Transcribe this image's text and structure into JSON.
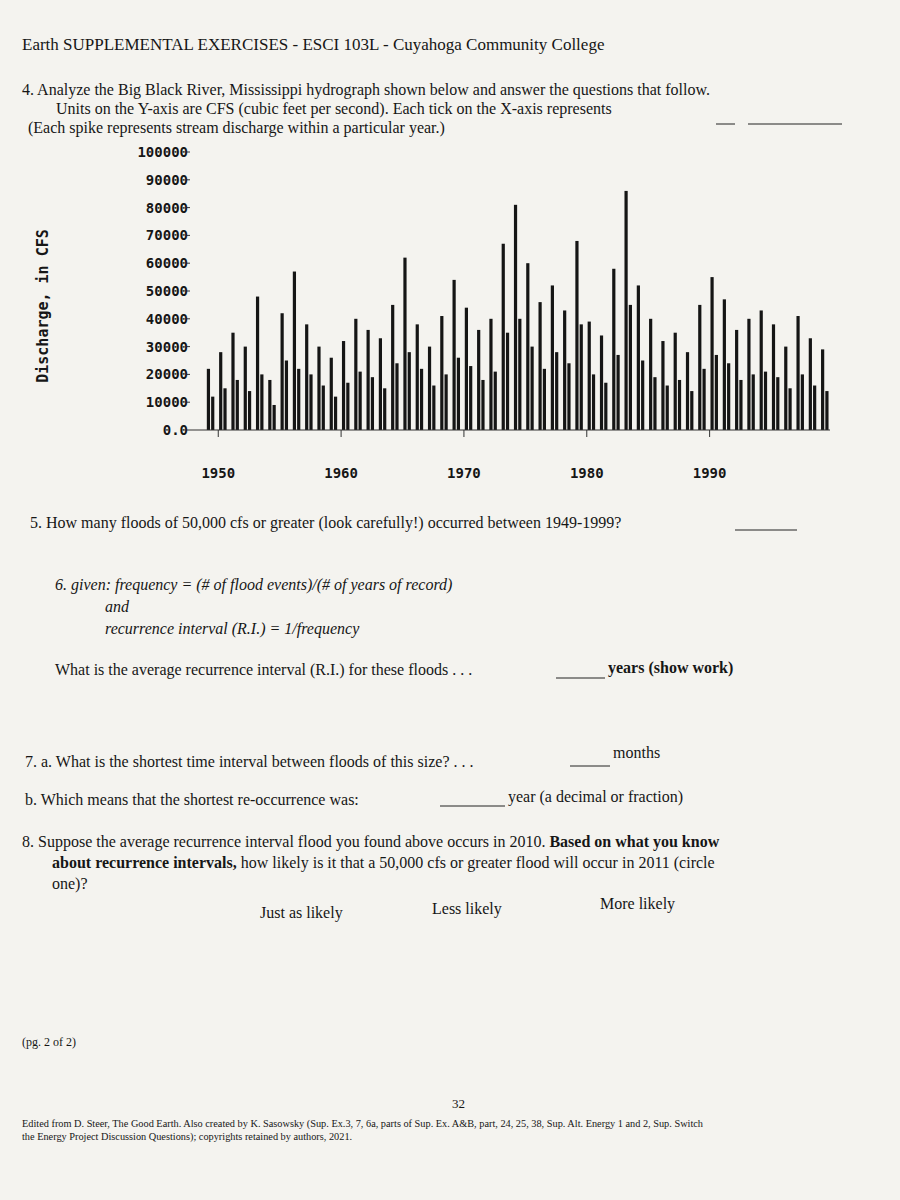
{
  "header": {
    "title": "Earth SUPPLEMENTAL EXERCISES - ESCI 103L - Cuyahoga Community College"
  },
  "q4": [
    "4. Analyze the Big Black River, Mississippi hydrograph shown below and answer the questions that follow.",
    "Units on the Y-axis are CFS (cubic feet per second).  Each tick on the X-axis represents",
    "(Each spike represents stream discharge within a particular year.)"
  ],
  "chart_data": {
    "type": "bar",
    "y_label": "Discharge, in CFS",
    "color": "#151515",
    "x": [
      1949.2,
      1949.55,
      1950.2,
      1950.55,
      1951.2,
      1951.55,
      1952.2,
      1952.55,
      1953.2,
      1953.55,
      1954.2,
      1954.55,
      1955.2,
      1955.55,
      1956.2,
      1956.55,
      1957.2,
      1957.55,
      1958.2,
      1958.55,
      1959.2,
      1959.55,
      1960.2,
      1960.55,
      1961.2,
      1961.55,
      1962.2,
      1962.55,
      1963.2,
      1963.55,
      1964.2,
      1964.55,
      1965.2,
      1965.55,
      1966.2,
      1966.55,
      1967.2,
      1967.55,
      1968.2,
      1968.55,
      1969.2,
      1969.55,
      1970.2,
      1970.55,
      1971.2,
      1971.55,
      1972.2,
      1972.55,
      1973.2,
      1973.55,
      1974.2,
      1974.55,
      1975.2,
      1975.55,
      1976.2,
      1976.55,
      1977.2,
      1977.55,
      1978.2,
      1978.55,
      1979.2,
      1979.55,
      1980.2,
      1980.55,
      1981.2,
      1981.55,
      1982.2,
      1982.55,
      1983.2,
      1983.55,
      1984.2,
      1984.55,
      1985.2,
      1985.55,
      1986.2,
      1986.55,
      1987.2,
      1987.55,
      1988.2,
      1988.55,
      1989.2,
      1989.55,
      1990.2,
      1990.55,
      1991.2,
      1991.55,
      1992.2,
      1992.55,
      1993.2,
      1993.55,
      1994.2,
      1994.55,
      1995.2,
      1995.55,
      1996.2,
      1996.55,
      1997.2,
      1997.55,
      1998.2,
      1998.55,
      1999.2,
      1999.55
    ],
    "values": [
      22000,
      12000,
      28000,
      15000,
      35000,
      18000,
      30000,
      14000,
      48000,
      20000,
      18000,
      9000,
      42000,
      25000,
      57000,
      22000,
      38000,
      20000,
      30000,
      16000,
      26000,
      12000,
      32000,
      17000,
      40000,
      21000,
      36000,
      19000,
      33000,
      15000,
      45000,
      24000,
      62000,
      28000,
      38000,
      22000,
      30000,
      16000,
      41000,
      20000,
      54000,
      26000,
      44000,
      23000,
      36000,
      18000,
      40000,
      21000,
      67000,
      35000,
      81000,
      40000,
      60000,
      30000,
      46000,
      22000,
      52000,
      28000,
      43000,
      24000,
      68000,
      38000,
      39000,
      20000,
      34000,
      17000,
      58000,
      27000,
      86000,
      45000,
      52000,
      25000,
      40000,
      19000,
      32000,
      16000,
      35000,
      18000,
      28000,
      14000,
      45000,
      22000,
      55000,
      27000,
      47000,
      24000,
      36000,
      18000,
      40000,
      20000,
      43000,
      21000,
      38000,
      19000,
      30000,
      15000,
      41000,
      20000,
      33000,
      16000,
      29000,
      14000
    ],
    "xlim": [
      1947.7,
      1999.8
    ],
    "xticks": [
      1950,
      1960,
      1970,
      1980,
      1990
    ],
    "ylim": [
      0,
      100000
    ],
    "yticks": [
      {
        "value": 0,
        "label": "0.0"
      },
      10000,
      20000,
      30000,
      40000,
      50000,
      60000,
      70000,
      80000,
      90000,
      100000
    ]
  },
  "q5": "5. How many floods of 50,000 cfs or greater (look carefully!) occurred between 1949-1999?",
  "q6": {
    "given": "6. given: frequency = (# of flood events)/(# of years of record)",
    "and": "and",
    "ri": "recurrence interval (R.I.) = 1/frequency",
    "question": "What is the average recurrence interval (R.I.) for these floods . . .",
    "unit": "years (show work)"
  },
  "q7": {
    "a": "7. a. What is the shortest time interval between floods of this size? . . .",
    "a_unit": "months",
    "b": "b. Which means that the shortest re-occurrence was:",
    "b_unit": "year (a decimal or fraction)"
  },
  "q8": {
    "lines": [
      {
        "text": "8. Suppose the average recurrence interval flood you found above occurs in 2010.  ",
        "emphasis": "Based on what you know"
      },
      {
        "text": "",
        "emphasis": "about recurrence intervals,"
      },
      {
        "text": "one)?",
        "emphasis": ""
      }
    ],
    "line2_rest": " how likely is it that a 50,000 cfs or greater flood will occur in 2011 (circle",
    "options": [
      "Just as likely",
      "Less likely",
      "More likely"
    ]
  },
  "footer": {
    "page": "(pg. 2 of 2)",
    "page_number": "32",
    "credits": [
      "Edited from D. Steer, The Good Earth.  Also created by K. Sasowsky (Sup. Ex.3, 7, 6a, parts of Sup. Ex. A&B, part, 24, 25, 38, Sup. Alt. Energy 1 and 2, Sup. Switch",
      "the Energy Project Discussion Questions); copyrights retained by authors, 2021."
    ]
  }
}
